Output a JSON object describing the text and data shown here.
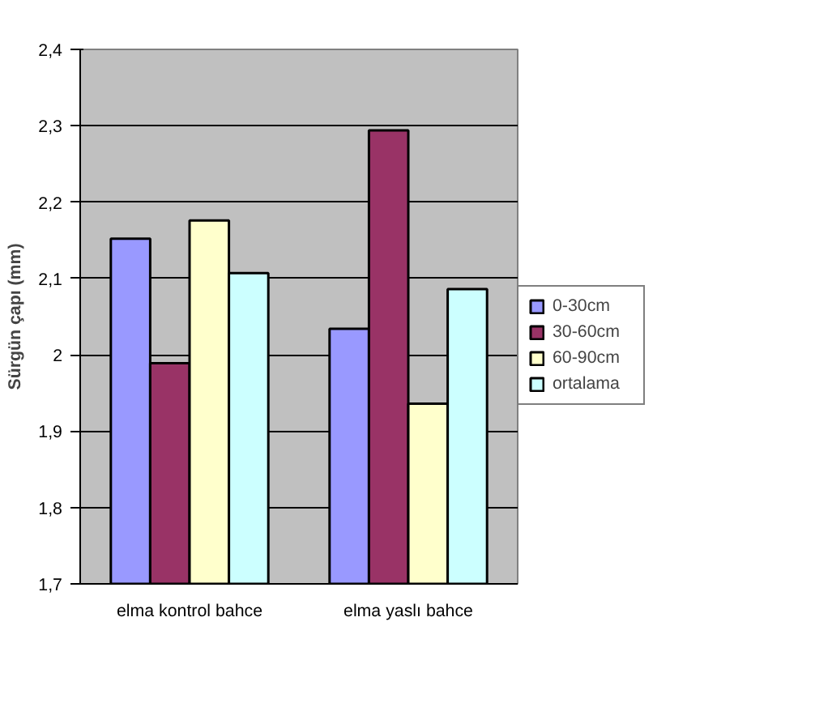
{
  "chart_data": {
    "type": "bar",
    "ylabel": "Sürgün çapı (mm)",
    "categories": [
      "elma kontrol bahce",
      "elma yaslı bahce"
    ],
    "series": [
      {
        "name": "0-30cm",
        "color": "#9999ff",
        "values": [
          2.152,
          2.034
        ]
      },
      {
        "name": "30-60cm",
        "color": "#993366",
        "values": [
          1.989,
          2.294
        ]
      },
      {
        "name": "60-90cm",
        "color": "#ffffcc",
        "values": [
          2.176,
          1.936
        ]
      },
      {
        "name": "ortalama",
        "color": "#ccffff",
        "values": [
          2.107,
          2.086
        ]
      }
    ],
    "ylim": [
      1.7,
      2.4
    ],
    "yticks": [
      {
        "value": 1.7,
        "label": "1,7"
      },
      {
        "value": 1.8,
        "label": "1,8"
      },
      {
        "value": 1.9,
        "label": "1,9"
      },
      2,
      {
        "value": 2.1,
        "label": "2,1"
      },
      {
        "value": 2.2,
        "label": "2,2"
      },
      {
        "value": 2.3,
        "label": "2,3"
      },
      {
        "value": 2.4,
        "label": "2,4"
      }
    ],
    "grid": "y",
    "legend": "right"
  }
}
